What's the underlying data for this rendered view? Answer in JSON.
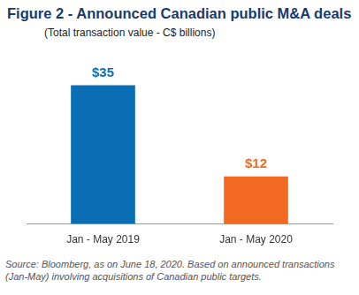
{
  "chart_data": {
    "type": "bar",
    "title": "Figure 2 - Announced Canadian public M&A deals",
    "subtitle": "(Total transaction value - C$ billions)",
    "categories": [
      "Jan - May 2019",
      "Jan - May 2020"
    ],
    "values": [
      35,
      12
    ],
    "value_labels": [
      "$35",
      "$12"
    ],
    "colors": [
      "#0a6eb4",
      "#f26a21"
    ],
    "ylim": [
      0,
      40
    ],
    "grid": false,
    "data_labels": true,
    "tick_labels": "x",
    "source": "Source: Bloomberg, as on June 18, 2020. Based on announced transactions (Jan-May) involving acquisitions of Canadian public targets."
  }
}
